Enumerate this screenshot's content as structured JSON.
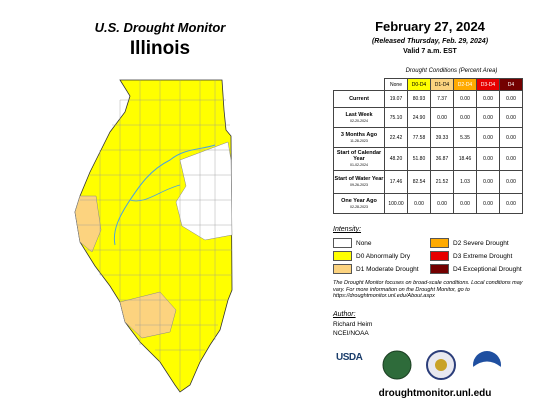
{
  "header": {
    "title": "U.S. Drought Monitor",
    "state": "Illinois",
    "date": "February 27, 2024",
    "released": "(Released Thursday, Feb. 29, 2024)",
    "valid": "Valid 7 a.m. EST"
  },
  "table": {
    "caption": "Drought Conditions (Percent Area)",
    "columns": [
      {
        "label": "None",
        "color": "#ffffff",
        "text": "#000000"
      },
      {
        "label": "D0-D4",
        "color": "#ffff00",
        "text": "#000000"
      },
      {
        "label": "D1-D4",
        "color": "#fcd37f",
        "text": "#000000"
      },
      {
        "label": "D2-D4",
        "color": "#ffaa00",
        "text": "#ffffff"
      },
      {
        "label": "D3-D4",
        "color": "#e60000",
        "text": "#ffffff"
      },
      {
        "label": "D4",
        "color": "#730000",
        "text": "#ffffff"
      }
    ],
    "rows": [
      {
        "label": "Current",
        "values": [
          "19.07",
          "80.93",
          "7.37",
          "0.00",
          "0.00",
          "0.00"
        ]
      },
      {
        "label": "Last Week",
        "date": "02-20-2024",
        "values": [
          "75.10",
          "24.90",
          "0.00",
          "0.00",
          "0.00",
          "0.00"
        ]
      },
      {
        "label": "3 Months Ago",
        "date": "11-28-2023",
        "values": [
          "22.42",
          "77.58",
          "39.33",
          "5.35",
          "0.00",
          "0.00"
        ]
      },
      {
        "label": "Start of Calendar Year",
        "date": "01-02-2024",
        "values": [
          "48.20",
          "51.80",
          "36.87",
          "18.46",
          "0.00",
          "0.00"
        ]
      },
      {
        "label": "Start of Water Year",
        "date": "09-26-2023",
        "values": [
          "17.46",
          "82.54",
          "21.52",
          "1.03",
          "0.00",
          "0.00"
        ]
      },
      {
        "label": "One Year Ago",
        "date": "02-28-2023",
        "values": [
          "100.00",
          "0.00",
          "0.00",
          "0.00",
          "0.00",
          "0.00"
        ]
      }
    ]
  },
  "legend": {
    "title": "Intensity:",
    "items": [
      {
        "label": "None",
        "color": "#ffffff"
      },
      {
        "label": "D0 Abnormally Dry",
        "color": "#ffff00"
      },
      {
        "label": "D1 Moderate Drought",
        "color": "#fcd37f"
      },
      {
        "label": "D2 Severe Drought",
        "color": "#ffaa00"
      },
      {
        "label": "D3 Extreme Drought",
        "color": "#e60000"
      },
      {
        "label": "D4 Exceptional Drought",
        "color": "#730000"
      }
    ]
  },
  "note": "The Drought Monitor focuses on broad-scale conditions. Local conditions may vary. For more information on the Drought Monitor, go to https://droughtmonitor.unl.edu/About.aspx",
  "author": {
    "title": "Author:",
    "name": "Richard Heim",
    "org": "NCEI/NOAA"
  },
  "logos": {
    "usda": "USDA"
  },
  "url": "droughtmonitor.unl.edu"
}
